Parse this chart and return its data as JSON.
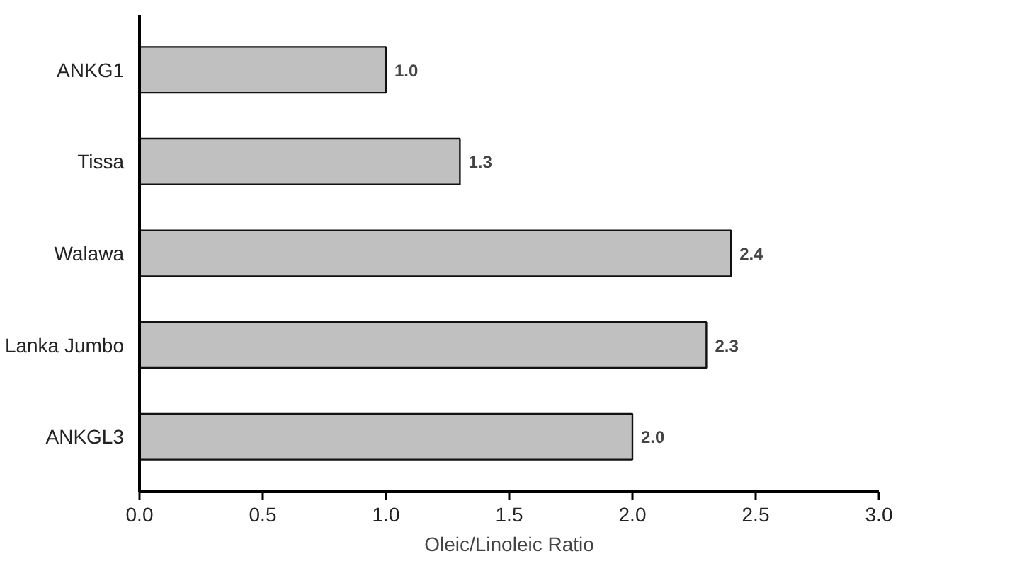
{
  "chart_data": {
    "type": "bar",
    "orientation": "horizontal",
    "xlabel": "Oleic/Linoleic Ratio",
    "categories": [
      "ANKG1",
      "Tissa",
      "Walawa",
      "Lanka Jumbo",
      "ANKGL3"
    ],
    "values": [
      1.0,
      1.3,
      2.4,
      2.3,
      2.0
    ],
    "value_labels": [
      "1.0",
      "1.3",
      "2.4",
      "2.3",
      "2.0"
    ],
    "color": "#c0c0c0",
    "xlim": [
      0,
      3
    ],
    "xticks": [
      {
        "value": 0,
        "label": "0.0"
      },
      {
        "value": 0.5,
        "label": "0.5"
      },
      {
        "value": 1,
        "label": "1.0"
      },
      {
        "value": 1.5,
        "label": "1.5"
      },
      {
        "value": 2,
        "label": "2.0"
      },
      {
        "value": 2.5,
        "label": "2.5"
      },
      {
        "value": 3,
        "label": "3.0"
      }
    ],
    "grid": false
  }
}
